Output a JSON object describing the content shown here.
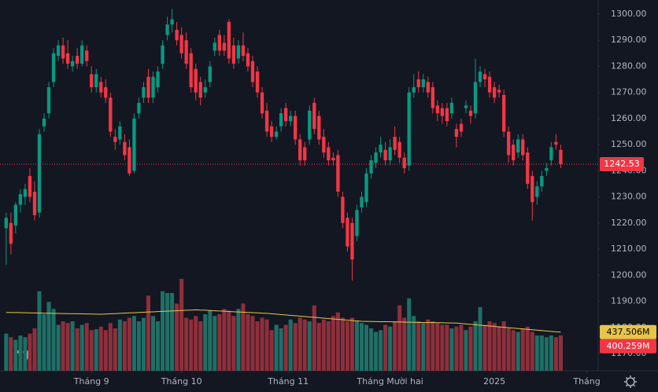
{
  "chart_data": {
    "type": "candlestick",
    "up_color": "#089981",
    "down_color": "#f23645",
    "volume_up_color": "#1f6f66",
    "volume_down_color": "#8f2f3b",
    "volume_ma_color": "#e8c547",
    "last_price_color": "#f23645",
    "xlim": [
      -1.3,
      124.9
    ],
    "xticks": [
      {
        "value": 18,
        "label": "Tháng 9"
      },
      {
        "value": 37,
        "label": "Tháng 10"
      },
      {
        "value": 59.5,
        "label": "Tháng 11"
      },
      {
        "value": 81,
        "label": "Tháng Mười hai"
      },
      {
        "value": 103,
        "label": "2025"
      },
      {
        "value": 122.5,
        "label": "Tháng"
      }
    ],
    "ylim": [
      1163.4,
      1305.4
    ],
    "yticks": [
      {
        "value": 1170,
        "label": "1170.00"
      },
      {
        "value": 1180,
        "label": "1180.00"
      },
      {
        "value": 1190,
        "label": "1190.00"
      },
      {
        "value": 1200,
        "label": "1200.00"
      },
      {
        "value": 1210,
        "label": "1210.00"
      },
      {
        "value": 1220,
        "label": "1220.00"
      },
      {
        "value": 1230,
        "label": "1230.00"
      },
      {
        "value": 1240,
        "label": "1240.00"
      },
      {
        "value": 1250,
        "label": "1250.00"
      },
      {
        "value": 1260,
        "label": "1260.00"
      },
      {
        "value": 1270,
        "label": "1270.00"
      },
      {
        "value": 1280,
        "label": "1280.00"
      },
      {
        "value": 1290,
        "label": "1290.00"
      },
      {
        "value": 1300,
        "label": "1300.00"
      }
    ],
    "grid": false,
    "volume_lim": [
      0,
      4195
    ],
    "ohlc": [
      [
        1218,
        1224,
        1204,
        1222
      ],
      [
        1220,
        1224,
        1208,
        1212
      ],
      [
        1219,
        1228,
        1216,
        1227
      ],
      [
        1227,
        1233,
        1224,
        1231
      ],
      [
        1230,
        1235,
        1227,
        1233
      ],
      [
        1238,
        1241,
        1228,
        1230
      ],
      [
        1232,
        1236,
        1221,
        1223
      ],
      [
        1224,
        1256,
        1222,
        1254
      ],
      [
        1257,
        1262,
        1255,
        1260
      ],
      [
        1262,
        1274,
        1260,
        1272
      ],
      [
        1274,
        1287,
        1272,
        1285
      ],
      [
        1284,
        1290,
        1282,
        1288
      ],
      [
        1288,
        1291,
        1281,
        1283
      ],
      [
        1285,
        1290,
        1279,
        1281
      ],
      [
        1280,
        1284,
        1278,
        1282
      ],
      [
        1284,
        1287,
        1279,
        1281
      ],
      [
        1281,
        1290,
        1280,
        1288
      ],
      [
        1286,
        1288,
        1280,
        1282
      ],
      [
        1277,
        1280,
        1270,
        1272
      ],
      [
        1272,
        1279,
        1270,
        1277
      ],
      [
        1274,
        1276,
        1268,
        1270
      ],
      [
        1272,
        1275,
        1266,
        1268
      ],
      [
        1268,
        1270,
        1253,
        1255
      ],
      [
        1253,
        1256,
        1248,
        1251
      ],
      [
        1252,
        1259,
        1250,
        1257
      ],
      [
        1251,
        1254,
        1244,
        1246
      ],
      [
        1249,
        1252,
        1238,
        1239
      ],
      [
        1240,
        1262,
        1239,
        1260
      ],
      [
        1262,
        1268,
        1260,
        1266
      ],
      [
        1268,
        1274,
        1266,
        1272
      ],
      [
        1276,
        1279,
        1266,
        1268
      ],
      [
        1268,
        1278,
        1266,
        1276
      ],
      [
        1272,
        1280,
        1270,
        1278
      ],
      [
        1281,
        1290,
        1279,
        1288
      ],
      [
        1292,
        1299,
        1290,
        1296
      ],
      [
        1296,
        1302,
        1293,
        1298
      ],
      [
        1294,
        1297,
        1288,
        1290
      ],
      [
        1292,
        1295,
        1283,
        1285
      ],
      [
        1290,
        1293,
        1279,
        1281
      ],
      [
        1285,
        1287,
        1270,
        1272
      ],
      [
        1279,
        1281,
        1267,
        1270
      ],
      [
        1274,
        1276,
        1265,
        1268
      ],
      [
        1270,
        1275,
        1268,
        1272
      ],
      [
        1274,
        1282,
        1272,
        1280
      ],
      [
        1286,
        1291,
        1284,
        1289
      ],
      [
        1292,
        1294,
        1284,
        1286
      ],
      [
        1289,
        1292,
        1284,
        1286
      ],
      [
        1297,
        1298,
        1281,
        1283
      ],
      [
        1288,
        1291,
        1279,
        1281
      ],
      [
        1283,
        1290,
        1281,
        1288
      ],
      [
        1288,
        1293,
        1282,
        1284
      ],
      [
        1285,
        1287,
        1278,
        1280
      ],
      [
        1282,
        1284,
        1272,
        1274
      ],
      [
        1278,
        1280,
        1268,
        1270
      ],
      [
        1270,
        1272,
        1260,
        1262
      ],
      [
        1263,
        1266,
        1253,
        1255
      ],
      [
        1257,
        1259,
        1251,
        1253
      ],
      [
        1253,
        1257,
        1252,
        1255
      ],
      [
        1257,
        1264,
        1255,
        1262
      ],
      [
        1264,
        1266,
        1257,
        1259
      ],
      [
        1259,
        1263,
        1257,
        1261
      ],
      [
        1261,
        1263,
        1250,
        1252
      ],
      [
        1252,
        1254,
        1242,
        1244
      ],
      [
        1249,
        1251,
        1242,
        1244
      ],
      [
        1252,
        1265,
        1250,
        1263
      ],
      [
        1266,
        1268,
        1254,
        1256
      ],
      [
        1261,
        1263,
        1250,
        1252
      ],
      [
        1253,
        1256,
        1245,
        1247
      ],
      [
        1249,
        1251,
        1242,
        1244
      ],
      [
        1245,
        1247,
        1242,
        1244
      ],
      [
        1246,
        1248,
        1230,
        1232
      ],
      [
        1230,
        1232,
        1218,
        1220
      ],
      [
        1222,
        1224,
        1209,
        1211
      ],
      [
        1220,
        1222,
        1198,
        1206
      ],
      [
        1215,
        1227,
        1213,
        1225
      ],
      [
        1226,
        1232,
        1224,
        1230
      ],
      [
        1228,
        1241,
        1226,
        1239
      ],
      [
        1239,
        1246,
        1237,
        1244
      ],
      [
        1243,
        1249,
        1241,
        1247
      ],
      [
        1247,
        1253,
        1245,
        1250
      ],
      [
        1248,
        1251,
        1242,
        1244
      ],
      [
        1244,
        1252,
        1242,
        1249
      ],
      [
        1253,
        1257,
        1246,
        1248
      ],
      [
        1251,
        1253,
        1243,
        1245
      ],
      [
        1245,
        1247,
        1239,
        1241
      ],
      [
        1242,
        1272,
        1240,
        1270
      ],
      [
        1270,
        1277,
        1268,
        1272
      ],
      [
        1275,
        1278,
        1270,
        1272
      ],
      [
        1272,
        1277,
        1270,
        1275
      ],
      [
        1274,
        1276,
        1268,
        1270
      ],
      [
        1272,
        1274,
        1262,
        1264
      ],
      [
        1265,
        1267,
        1259,
        1262
      ],
      [
        1264,
        1266,
        1258,
        1261
      ],
      [
        1264,
        1266,
        1257,
        1259
      ],
      [
        1262,
        1268,
        1260,
        1266
      ],
      [
        1256,
        1258,
        1249,
        1253
      ],
      [
        1258,
        1260,
        1253,
        1255
      ],
      [
        1264,
        1267,
        1262,
        1265
      ],
      [
        1263,
        1265,
        1258,
        1261
      ],
      [
        1262,
        1283,
        1260,
        1274
      ],
      [
        1274,
        1280,
        1272,
        1278
      ],
      [
        1277,
        1279,
        1272,
        1275
      ],
      [
        1276,
        1278,
        1268,
        1270
      ],
      [
        1272,
        1274,
        1266,
        1268
      ],
      [
        1271,
        1273,
        1268,
        1270
      ],
      [
        1269,
        1271,
        1253,
        1255
      ],
      [
        1255,
        1257,
        1243,
        1246
      ],
      [
        1250,
        1252,
        1242,
        1244
      ],
      [
        1247,
        1254,
        1245,
        1252
      ],
      [
        1252,
        1254,
        1244,
        1246
      ],
      [
        1247,
        1249,
        1233,
        1235
      ],
      [
        1238,
        1240,
        1221,
        1228
      ],
      [
        1230,
        1236,
        1227,
        1234
      ],
      [
        1234,
        1240,
        1232,
        1238
      ],
      [
        1240,
        1243,
        1238,
        1241
      ],
      [
        1244,
        1251,
        1242,
        1249
      ],
      [
        1251,
        1254,
        1248,
        1250
      ],
      [
        1248,
        1250,
        1241,
        1242.53
      ]
    ],
    "volume": [
      420,
      380,
      350,
      400,
      380,
      420,
      480,
      900,
      640,
      780,
      700,
      520,
      560,
      540,
      560,
      480,
      520,
      540,
      460,
      470,
      500,
      460,
      540,
      480,
      580,
      560,
      600,
      620,
      560,
      600,
      850,
      620,
      560,
      900,
      880,
      880,
      760,
      1040,
      600,
      580,
      620,
      560,
      640,
      680,
      620,
      640,
      700,
      680,
      620,
      700,
      760,
      640,
      620,
      560,
      600,
      580,
      460,
      520,
      480,
      520,
      580,
      540,
      600,
      580,
      560,
      740,
      540,
      580,
      560,
      620,
      660,
      600,
      560,
      600,
      560,
      540,
      520,
      480,
      440,
      460,
      520,
      500,
      560,
      740,
      600,
      820,
      620,
      560,
      540,
      580,
      560,
      540,
      520,
      520,
      480,
      500,
      520,
      460,
      500,
      560,
      720,
      520,
      560,
      540,
      500,
      560,
      480,
      460,
      440,
      480,
      500,
      440,
      400,
      400,
      380,
      400,
      380,
      400.259
    ],
    "volume_ma": [
      660,
      660,
      659,
      658,
      657,
      655,
      654,
      653,
      652,
      651,
      650,
      649,
      648,
      647,
      646,
      645,
      644,
      643,
      642,
      641,
      640,
      642,
      645,
      647,
      650,
      652,
      655,
      657,
      660,
      662,
      665,
      667,
      670,
      672,
      675,
      677,
      680,
      682,
      685,
      687,
      690,
      687,
      685,
      682,
      679,
      677,
      674,
      671,
      668,
      666,
      663,
      660,
      658,
      655,
      652,
      650,
      645,
      641,
      636,
      632,
      627,
      623,
      618,
      614,
      609,
      605,
      600,
      596,
      591,
      587,
      582,
      578,
      573,
      569,
      564,
      560,
      559,
      558,
      557,
      556,
      555,
      554,
      553,
      552,
      551,
      550,
      549,
      548,
      547,
      546,
      545,
      544,
      543,
      542,
      541,
      540,
      535,
      530,
      526,
      521,
      516,
      511,
      507,
      502,
      497,
      492,
      488,
      483,
      478,
      474,
      469,
      464,
      460,
      455,
      450,
      446,
      441,
      437.506
    ],
    "volume_labels": {
      "volume": "400.259M",
      "volume_ma": "437.506M"
    }
  }
}
